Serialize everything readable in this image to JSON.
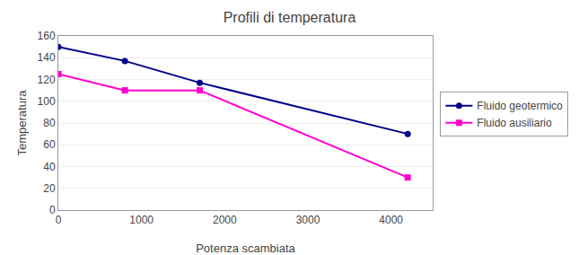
{
  "chart_data": {
    "type": "line",
    "title": "Profili di temperatura",
    "x_label": "Potenza scambiata",
    "y_label": "Temperatura",
    "x": [
      0,
      800,
      1700,
      4200
    ],
    "series": [
      {
        "name": "Fluido geotermico",
        "color": "#00008B",
        "marker": "circle",
        "values": [
          150,
          137,
          117,
          70
        ]
      },
      {
        "name": "Fluido ausiliario",
        "color": "#FF00CC",
        "marker": "square",
        "values": [
          125,
          110,
          110,
          30
        ]
      }
    ],
    "xlim": [
      0,
      4500
    ],
    "ylim": [
      0,
      160
    ],
    "xticks": [
      0,
      1000,
      2000,
      3000,
      4000
    ],
    "yticks": [
      0,
      20,
      40,
      60,
      80,
      100,
      120,
      140,
      160
    ],
    "grid": "y",
    "legend": "right"
  }
}
